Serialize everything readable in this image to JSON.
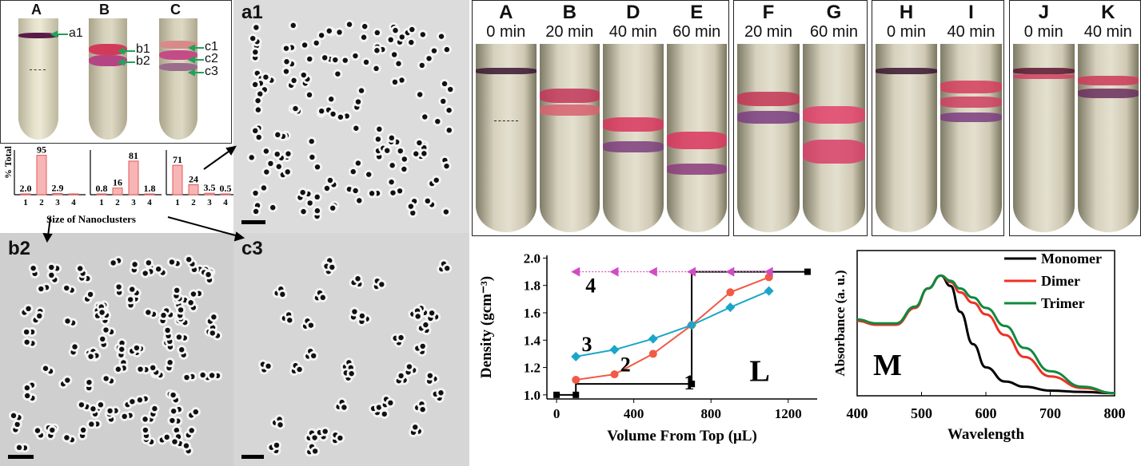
{
  "tubes_small": {
    "labels": [
      "A",
      "B",
      "C"
    ],
    "a_labels": [
      "a1"
    ],
    "b_labels": [
      "b1",
      "b2"
    ],
    "c_labels": [
      "c1",
      "c2",
      "c3"
    ]
  },
  "histograms": {
    "ylabel": "% Total",
    "xlabel": "Size of Nanoclusters",
    "ticks": [
      "1",
      "2",
      "3",
      "4"
    ],
    "groups": [
      {
        "name": "A",
        "values": [
          2.0,
          95,
          2.9,
          0
        ],
        "labels": [
          "2.0",
          "95",
          "2.9",
          ""
        ]
      },
      {
        "name": "B",
        "values": [
          0.8,
          16,
          81,
          1.8
        ],
        "labels": [
          "0.8",
          "16",
          "81",
          "1.8"
        ]
      },
      {
        "name": "C",
        "values": [
          71,
          24,
          3.5,
          0.5
        ],
        "labels": [
          "71",
          "24",
          "3.5",
          "0.5"
        ]
      }
    ]
  },
  "tem": {
    "a1": "a1",
    "b2": "b2",
    "c3": "c3"
  },
  "tube_photos": {
    "groups": [
      {
        "tubes": [
          {
            "letter": "A",
            "time": "0 min"
          },
          {
            "letter": "B",
            "time": "20 min"
          },
          {
            "letter": "D",
            "time": "40 min"
          },
          {
            "letter": "E",
            "time": "60 min"
          }
        ]
      },
      {
        "tubes": [
          {
            "letter": "F",
            "time": "20 min"
          },
          {
            "letter": "G",
            "time": "60 min"
          }
        ]
      },
      {
        "tubes": [
          {
            "letter": "H",
            "time": "0 min"
          },
          {
            "letter": "I",
            "time": "40 min"
          }
        ]
      },
      {
        "tubes": [
          {
            "letter": "J",
            "time": "0 min"
          },
          {
            "letter": "K",
            "time": "40 min"
          }
        ]
      }
    ]
  },
  "chart_data": [
    {
      "panel": "L",
      "type": "line",
      "xlabel": "Volume From Top (μL)",
      "ylabel": "Density (gcm⁻³)",
      "xlim": [
        -50,
        1350
      ],
      "ylim": [
        0.97,
        2.02
      ],
      "xticks": [
        "0",
        "400",
        "800",
        "1200"
      ],
      "yticks": [
        "1.0",
        "1.2",
        "1.4",
        "1.6",
        "1.8",
        "2.0"
      ],
      "series": [
        {
          "name": "1",
          "color": "#000000",
          "x": [
            0,
            100,
            100,
            700,
            700,
            700,
            1300
          ],
          "y": [
            1.0,
            1.0,
            1.08,
            1.08,
            1.08,
            1.9,
            1.9
          ]
        },
        {
          "name": "2",
          "color": "#f05a47",
          "x": [
            100,
            300,
            500,
            700,
            900,
            1100
          ],
          "y": [
            1.11,
            1.15,
            1.3,
            1.51,
            1.75,
            1.86
          ]
        },
        {
          "name": "3",
          "color": "#1aa6c8",
          "x": [
            100,
            300,
            500,
            700,
            900,
            1100
          ],
          "y": [
            1.28,
            1.33,
            1.41,
            1.51,
            1.64,
            1.76
          ]
        },
        {
          "name": "4",
          "color": "#d24bc4",
          "x": [
            100,
            300,
            500,
            700,
            900,
            1100
          ],
          "y": [
            1.9,
            1.9,
            1.9,
            1.9,
            1.9,
            1.9
          ]
        }
      ]
    },
    {
      "panel": "M",
      "type": "line",
      "xlabel": "Wavelength",
      "ylabel": "Absorbance (a. u.)",
      "xlim": [
        400,
        800
      ],
      "xticks": [
        "400",
        "500",
        "600",
        "700",
        "800"
      ],
      "series": [
        {
          "name": "Monomer",
          "color": "#000000",
          "x": [
            400,
            430,
            460,
            490,
            510,
            530,
            545,
            560,
            580,
            600,
            630,
            660,
            700,
            750,
            800
          ],
          "y": [
            0.58,
            0.55,
            0.55,
            0.68,
            0.83,
            0.93,
            0.85,
            0.65,
            0.4,
            0.22,
            0.11,
            0.07,
            0.04,
            0.03,
            0.02
          ]
        },
        {
          "name": "Dimer",
          "color": "#ee3124",
          "x": [
            400,
            430,
            460,
            490,
            510,
            530,
            545,
            560,
            580,
            600,
            630,
            660,
            700,
            750,
            800
          ],
          "y": [
            0.58,
            0.55,
            0.55,
            0.68,
            0.83,
            0.93,
            0.88,
            0.8,
            0.72,
            0.63,
            0.47,
            0.3,
            0.15,
            0.06,
            0.02
          ]
        },
        {
          "name": "Trimer",
          "color": "#10893e",
          "x": [
            400,
            430,
            460,
            490,
            510,
            530,
            545,
            560,
            580,
            600,
            630,
            660,
            700,
            750,
            800
          ],
          "y": [
            0.59,
            0.56,
            0.56,
            0.69,
            0.83,
            0.93,
            0.89,
            0.83,
            0.76,
            0.68,
            0.54,
            0.37,
            0.19,
            0.07,
            0.02
          ]
        }
      ]
    }
  ]
}
